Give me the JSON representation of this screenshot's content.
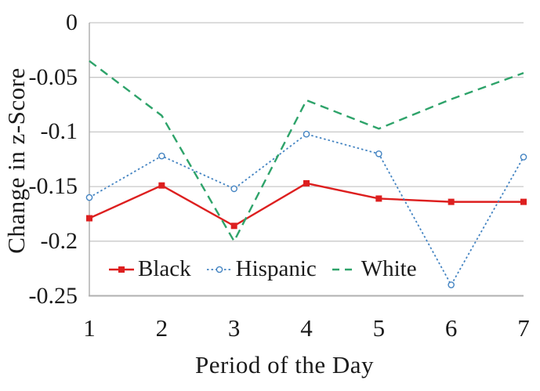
{
  "chart_data": {
    "type": "line",
    "title": "",
    "xlabel": "Period of the Day",
    "ylabel": "Change in z-Score",
    "x": [
      1,
      2,
      3,
      4,
      5,
      6,
      7
    ],
    "xlim": [
      1,
      7
    ],
    "ylim": [
      -0.25,
      0
    ],
    "xtick_labels": [
      "1",
      "2",
      "3",
      "4",
      "5",
      "6",
      "7"
    ],
    "yticks": [
      0,
      -0.05,
      -0.1,
      -0.15,
      -0.2,
      -0.25
    ],
    "ytick_labels": [
      "0",
      "-0.05",
      "-0.1",
      "-0.15",
      "-0.2",
      "-0.25"
    ],
    "grid": true,
    "legend_position": "inside-bottom-left",
    "series": [
      {
        "name": "Black",
        "color": "#dd1f1f",
        "style": "solid",
        "marker": "square",
        "values": [
          -0.179,
          -0.149,
          -0.186,
          -0.147,
          -0.161,
          -0.164,
          -0.164
        ]
      },
      {
        "name": "Hispanic",
        "color": "#4484c2",
        "style": "dotted",
        "marker": "circle-open",
        "values": [
          -0.16,
          -0.122,
          -0.152,
          -0.102,
          -0.12,
          -0.24,
          -0.123
        ]
      },
      {
        "name": "White",
        "color": "#2ea36a",
        "style": "dashed",
        "marker": "none",
        "values": [
          -0.035,
          -0.085,
          -0.2,
          -0.071,
          -0.097,
          -0.07,
          -0.046
        ]
      }
    ]
  },
  "colors": {
    "gridline": "#c8c8c8",
    "axis": "#b0b0b0",
    "text": "#1b1b1b"
  }
}
